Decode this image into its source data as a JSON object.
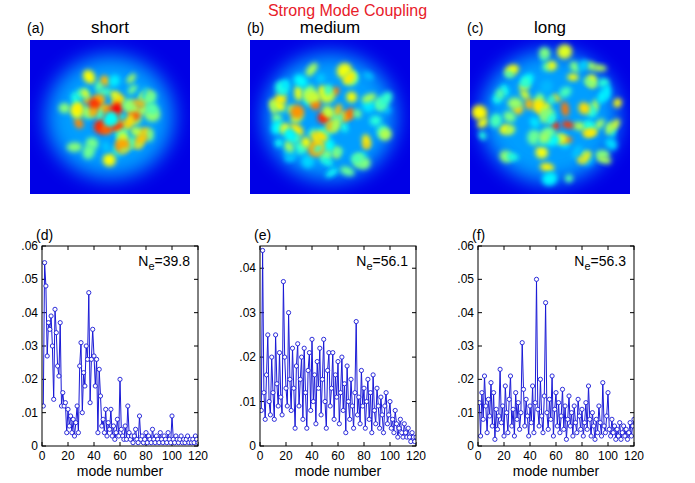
{
  "figure_title": "Strong Mode Coupling",
  "images": [
    {
      "label": "(a)",
      "title": "short"
    },
    {
      "label": "(b)",
      "title": "medium"
    },
    {
      "label": "(c)",
      "title": "long"
    }
  ],
  "chart_data": [
    {
      "type": "line",
      "panel_label": "(d)",
      "annotation": "Ne=39.8",
      "xlabel": "mode number",
      "xlim": [
        0,
        120
      ],
      "xticks": [
        0,
        20,
        40,
        60,
        80,
        100,
        120
      ],
      "ylim": [
        0,
        0.06
      ],
      "yticks": [
        0,
        {
          "value": 0.01,
          "label": ".01"
        },
        {
          "value": 0.02,
          "label": ".02"
        },
        {
          "value": 0.03,
          "label": ".03"
        },
        {
          "value": 0.04,
          "label": ".04"
        },
        {
          "value": 0.05,
          "label": ".05"
        },
        {
          "value": 0.06,
          "label": ".06"
        }
      ],
      "grid": false,
      "x": [
        1,
        2,
        3,
        4,
        5,
        6,
        7,
        8,
        9,
        10,
        11,
        12,
        13,
        14,
        15,
        16,
        17,
        18,
        19,
        20,
        21,
        22,
        23,
        24,
        25,
        26,
        27,
        28,
        29,
        30,
        31,
        32,
        33,
        34,
        35,
        36,
        37,
        38,
        39,
        40,
        41,
        42,
        43,
        44,
        45,
        46,
        47,
        48,
        49,
        50,
        51,
        52,
        53,
        54,
        55,
        56,
        57,
        58,
        59,
        60,
        61,
        62,
        63,
        64,
        65,
        66,
        67,
        68,
        69,
        70,
        71,
        72,
        73,
        74,
        75,
        76,
        77,
        78,
        79,
        80,
        81,
        82,
        83,
        84,
        85,
        86,
        87,
        88,
        89,
        90,
        91,
        92,
        93,
        94,
        95,
        96,
        97,
        98,
        99,
        100,
        101,
        102,
        103,
        104,
        105,
        106,
        107,
        108,
        109,
        110,
        111,
        112,
        113,
        114,
        115,
        116,
        117,
        118,
        119,
        120
      ],
      "series": [
        {
          "color": "#1a1ad6",
          "marker": "circle",
          "line_style": "solid",
          "values": [
            0.012,
            0.055,
            0.048,
            0.027,
            0.037,
            0.035,
            0.039,
            0.03,
            0.014,
            0.041,
            0.034,
            0.024,
            0.021,
            0.037,
            0.012,
            0.016,
            0.012,
            0.013,
            0.004,
            0.011,
            0.006,
            0.009,
            0.004,
            0.008,
            0.003,
            0.007,
            0.012,
            0.004,
            0.024,
            0.031,
            0.01,
            0.022,
            0.018,
            0.03,
            0.026,
            0.046,
            0.013,
            0.026,
            0.035,
            0.027,
            0.018,
            0.026,
            0.004,
            0.023,
            0.015,
            0.006,
            0.008,
            0.004,
            0.011,
            0.003,
            0.007,
            0.005,
            0.011,
            0.003,
            0.006,
            0.002,
            0.004,
            0.008,
            0.003,
            0.02,
            0.005,
            0.003,
            0.002,
            0.006,
            0.002,
            0.012,
            0.004,
            0.002,
            0.003,
            0.001,
            0.003,
            0.005,
            0.002,
            0.001,
            0.009,
            0.002,
            0.003,
            0.001,
            0.002,
            0.004,
            0.001,
            0.003,
            0.002,
            0.001,
            0.005,
            0.002,
            0.001,
            0.003,
            0.002,
            0.001,
            0.004,
            0.002,
            0.001,
            0.003,
            0.002,
            0.001,
            0.004,
            0.002,
            0.001,
            0.009,
            0.002,
            0.001,
            0.003,
            0.002,
            0.001,
            0.002,
            0.003,
            0.001,
            0.002,
            0.001,
            0.002,
            0.003,
            0.001,
            0.002,
            0.001,
            0.002,
            0.001,
            0.003,
            0.002,
            0.001
          ]
        }
      ]
    },
    {
      "type": "line",
      "panel_label": "(e)",
      "annotation": "Ne=56.1",
      "xlabel": "mode number",
      "xlim": [
        0,
        120
      ],
      "xticks": [
        0,
        20,
        40,
        60,
        80,
        100,
        120
      ],
      "ylim": [
        0,
        0.045
      ],
      "yticks": [
        0,
        {
          "value": 0.01,
          "label": ".01"
        },
        {
          "value": 0.02,
          "label": ".02"
        },
        {
          "value": 0.03,
          "label": ".03"
        },
        {
          "value": 0.04,
          "label": ".04"
        }
      ],
      "grid": false,
      "x": [
        1,
        2,
        3,
        4,
        5,
        6,
        7,
        8,
        9,
        10,
        11,
        12,
        13,
        14,
        15,
        16,
        17,
        18,
        19,
        20,
        21,
        22,
        23,
        24,
        25,
        26,
        27,
        28,
        29,
        30,
        31,
        32,
        33,
        34,
        35,
        36,
        37,
        38,
        39,
        40,
        41,
        42,
        43,
        44,
        45,
        46,
        47,
        48,
        49,
        50,
        51,
        52,
        53,
        54,
        55,
        56,
        57,
        58,
        59,
        60,
        61,
        62,
        63,
        64,
        65,
        66,
        67,
        68,
        69,
        70,
        71,
        72,
        73,
        74,
        75,
        76,
        77,
        78,
        79,
        80,
        81,
        82,
        83,
        84,
        85,
        86,
        87,
        88,
        89,
        90,
        91,
        92,
        93,
        94,
        95,
        96,
        97,
        98,
        99,
        100,
        101,
        102,
        103,
        104,
        105,
        106,
        107,
        108,
        109,
        110,
        111,
        112,
        113,
        114,
        115,
        116,
        117,
        118,
        119,
        120
      ],
      "series": [
        {
          "color": "#1a1ad6",
          "marker": "circle",
          "line_style": "solid",
          "values": [
            0.008,
            0.044,
            0.012,
            0.006,
            0.016,
            0.025,
            0.01,
            0.007,
            0.02,
            0.012,
            0.006,
            0.025,
            0.014,
            0.009,
            0.021,
            0.011,
            0.007,
            0.037,
            0.02,
            0.013,
            0.009,
            0.03,
            0.015,
            0.008,
            0.022,
            0.013,
            0.004,
            0.018,
            0.023,
            0.009,
            0.015,
            0.02,
            0.006,
            0.022,
            0.012,
            0.004,
            0.017,
            0.021,
            0.008,
            0.024,
            0.01,
            0.016,
            0.005,
            0.019,
            0.013,
            0.022,
            0.007,
            0.015,
            0.024,
            0.01,
            0.004,
            0.017,
            0.021,
            0.009,
            0.013,
            0.021,
            0.006,
            0.016,
            0.011,
            0.019,
            0.005,
            0.012,
            0.02,
            0.008,
            0.014,
            0.003,
            0.018,
            0.01,
            0.006,
            0.015,
            0.009,
            0.004,
            0.012,
            0.028,
            0.007,
            0.011,
            0.005,
            0.017,
            0.009,
            0.013,
            0.004,
            0.01,
            0.015,
            0.006,
            0.012,
            0.003,
            0.016,
            0.008,
            0.005,
            0.013,
            0.009,
            0.004,
            0.011,
            0.007,
            0.003,
            0.009,
            0.012,
            0.005,
            0.007,
            0.01,
            0.004,
            0.006,
            0.003,
            0.008,
            0.005,
            0.002,
            0.004,
            0.006,
            0.003,
            0.002,
            0.005,
            0.003,
            0.002,
            0.004,
            0.002,
            0.001,
            0.003,
            0.002,
            0.001,
            0.002
          ]
        }
      ]
    },
    {
      "type": "line",
      "panel_label": "(f)",
      "annotation": "Ne=56.3",
      "xlabel": "mode number",
      "xlim": [
        0,
        120
      ],
      "xticks": [
        0,
        20,
        40,
        60,
        80,
        100,
        120
      ],
      "ylim": [
        0,
        0.06
      ],
      "yticks": [
        0,
        {
          "value": 0.01,
          "label": ".01"
        },
        {
          "value": 0.02,
          "label": ".02"
        },
        {
          "value": 0.03,
          "label": ".03"
        },
        {
          "value": 0.04,
          "label": ".04"
        },
        {
          "value": 0.05,
          "label": ".05"
        },
        {
          "value": 0.06,
          "label": ".06"
        }
      ],
      "grid": false,
      "x": [
        1,
        2,
        3,
        4,
        5,
        6,
        7,
        8,
        9,
        10,
        11,
        12,
        13,
        14,
        15,
        16,
        17,
        18,
        19,
        20,
        21,
        22,
        23,
        24,
        25,
        26,
        27,
        28,
        29,
        30,
        31,
        32,
        33,
        34,
        35,
        36,
        37,
        38,
        39,
        40,
        41,
        42,
        43,
        44,
        45,
        46,
        47,
        48,
        49,
        50,
        51,
        52,
        53,
        54,
        55,
        56,
        57,
        58,
        59,
        60,
        61,
        62,
        63,
        64,
        65,
        66,
        67,
        68,
        69,
        70,
        71,
        72,
        73,
        74,
        75,
        76,
        77,
        78,
        79,
        80,
        81,
        82,
        83,
        84,
        85,
        86,
        87,
        88,
        89,
        90,
        91,
        92,
        93,
        94,
        95,
        96,
        97,
        98,
        99,
        100,
        101,
        102,
        103,
        104,
        105,
        106,
        107,
        108,
        109,
        110,
        111,
        112,
        113,
        114,
        115,
        116,
        117,
        118,
        119,
        120
      ],
      "series": [
        {
          "color": "#1a1ad6",
          "marker": "circle",
          "line_style": "solid",
          "values": [
            0.013,
            0.003,
            0.016,
            0.008,
            0.021,
            0.012,
            0.004,
            0.014,
            0.009,
            0.019,
            0.006,
            0.016,
            0.002,
            0.011,
            0.005,
            0.009,
            0.023,
            0.007,
            0.012,
            0.003,
            0.018,
            0.01,
            0.004,
            0.014,
            0.021,
            0.006,
            0.011,
            0.003,
            0.016,
            0.008,
            0.013,
            0.005,
            0.01,
            0.031,
            0.017,
            0.006,
            0.014,
            0.009,
            0.003,
            0.012,
            0.007,
            0.018,
            0.004,
            0.013,
            0.05,
            0.011,
            0.006,
            0.02,
            0.009,
            0.004,
            0.015,
            0.043,
            0.01,
            0.005,
            0.014,
            0.008,
            0.021,
            0.003,
            0.011,
            0.016,
            0.006,
            0.013,
            0.004,
            0.009,
            0.017,
            0.005,
            0.012,
            0.002,
            0.008,
            0.015,
            0.006,
            0.01,
            0.003,
            0.012,
            0.007,
            0.004,
            0.014,
            0.009,
            0.005,
            0.011,
            0.003,
            0.007,
            0.013,
            0.005,
            0.018,
            0.008,
            0.003,
            0.01,
            0.006,
            0.002,
            0.008,
            0.004,
            0.012,
            0.007,
            0.003,
            0.019,
            0.006,
            0.004,
            0.009,
            0.016,
            0.005,
            0.003,
            0.008,
            0.004,
            0.006,
            0.002,
            0.005,
            0.003,
            0.007,
            0.002,
            0.004,
            0.006,
            0.003,
            0.005,
            0.002,
            0.004,
            0.007,
            0.003,
            0.006,
            0.008
          ]
        }
      ]
    }
  ]
}
